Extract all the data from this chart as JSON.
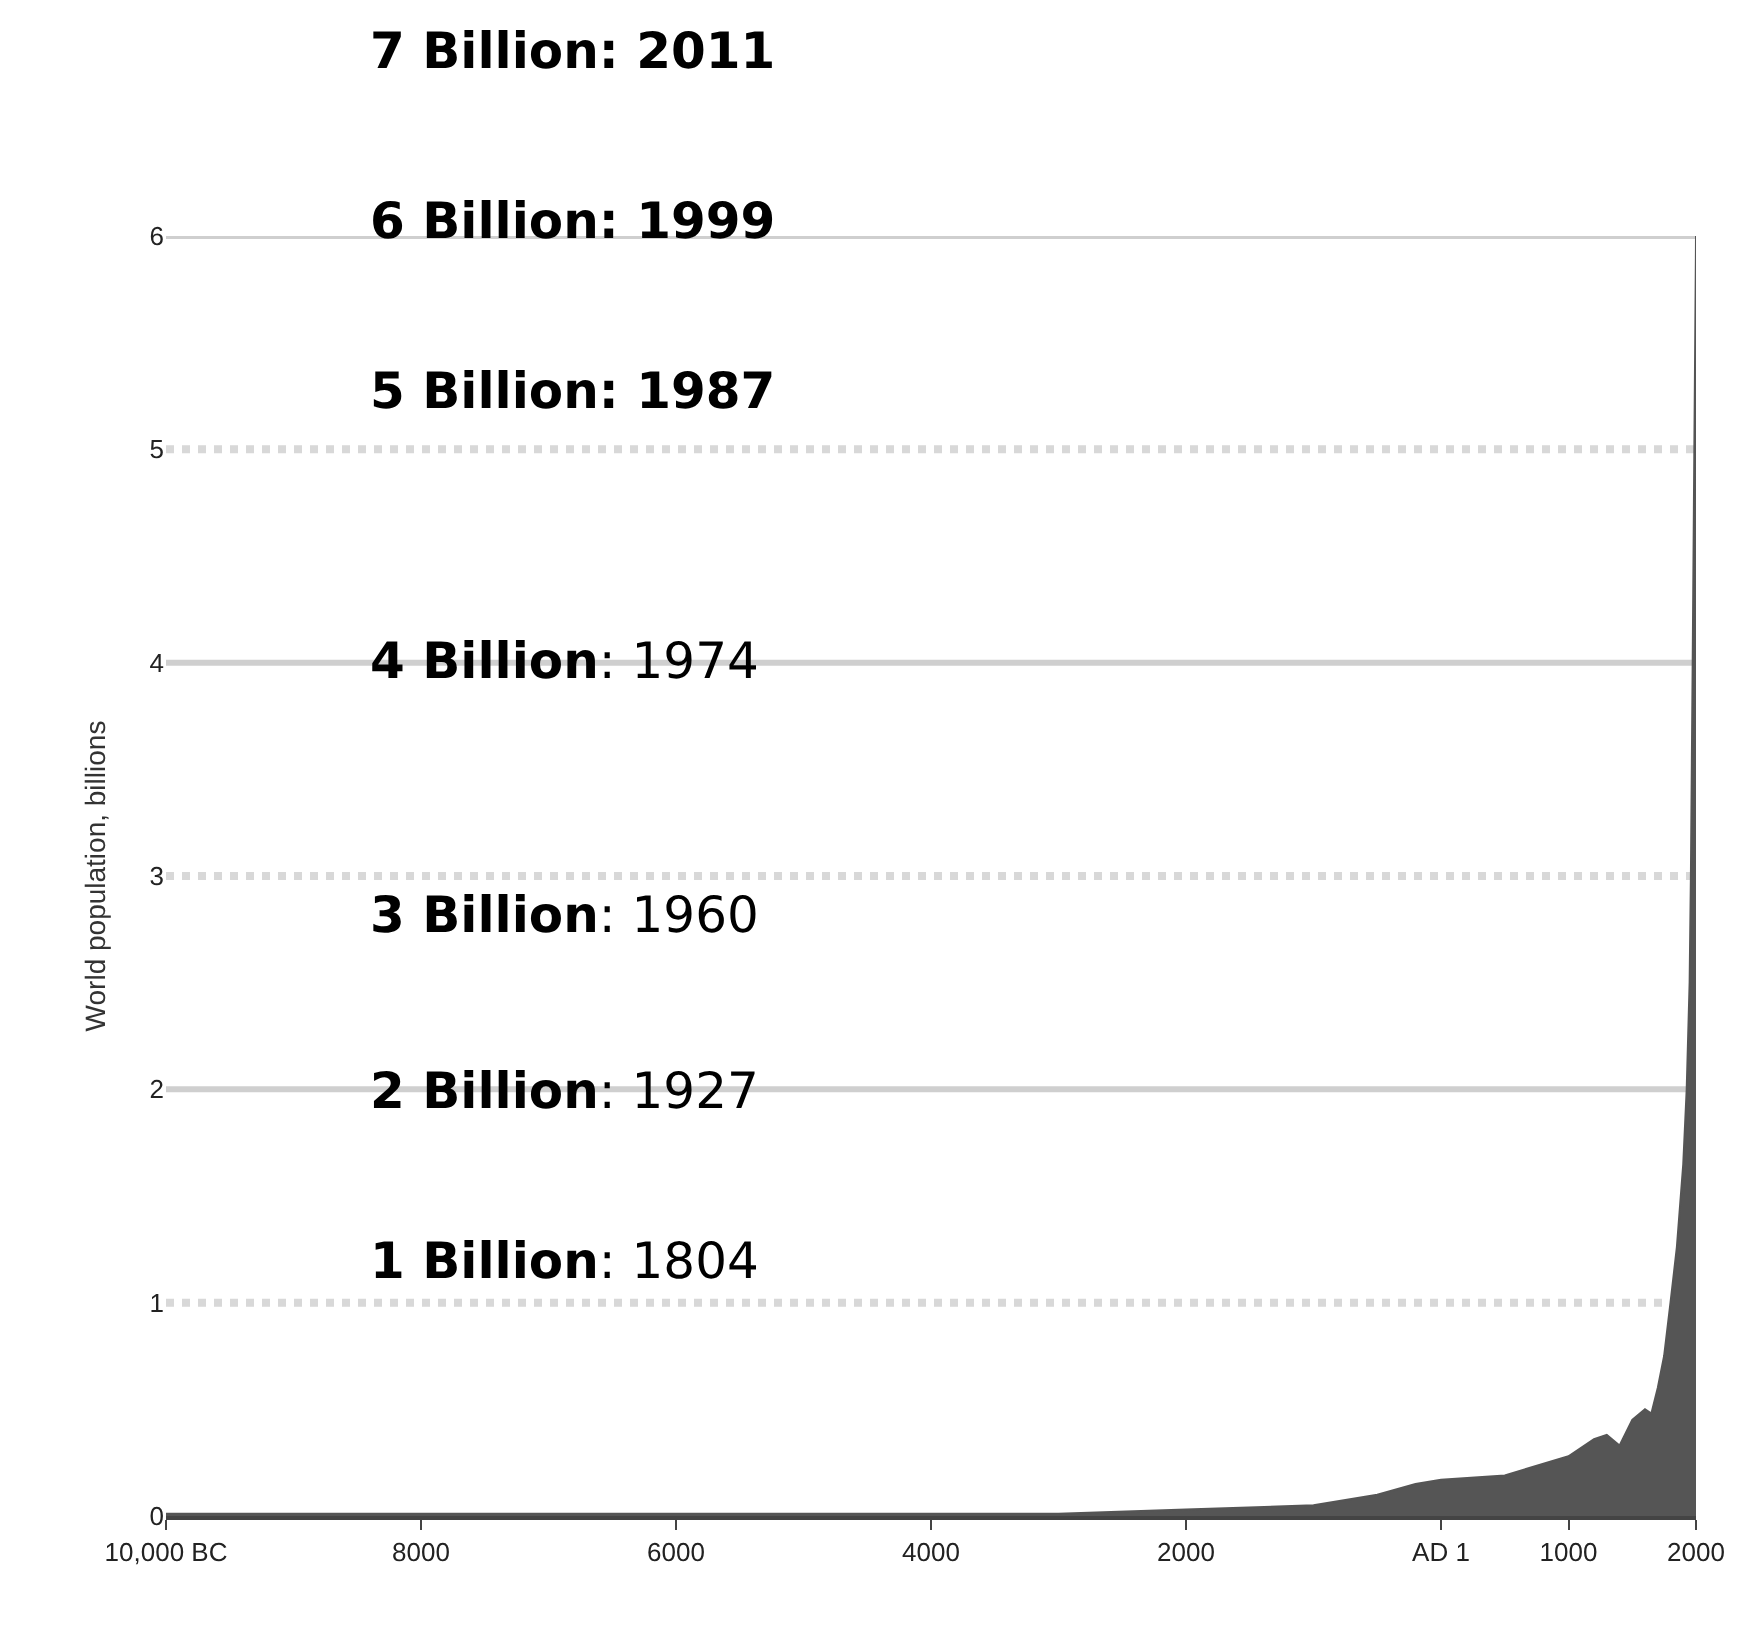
{
  "chart_data": {
    "type": "area",
    "ylabel": "World population, billions",
    "x": [
      -10000,
      -8000,
      -6000,
      -4000,
      -3000,
      -2000,
      -1000,
      -500,
      -200,
      0,
      500,
      1000,
      1200,
      1300,
      1400,
      1500,
      1600,
      1650,
      1700,
      1750,
      1800,
      1850,
      1900,
      1927,
      1950,
      1960,
      1974,
      1987,
      1999,
      2000
    ],
    "series": [
      {
        "color": "#555555",
        "values": [
          0.01,
          0.01,
          0.01,
          0.01,
          0.01,
          0.03,
          0.05,
          0.1,
          0.15,
          0.17,
          0.19,
          0.28,
          0.36,
          0.38,
          0.33,
          0.45,
          0.5,
          0.48,
          0.6,
          0.75,
          1.0,
          1.26,
          1.65,
          2.0,
          2.5,
          3.0,
          4.0,
          5.0,
          5.9,
          6.0
        ]
      }
    ],
    "xlim": [
      -10000,
      2000
    ],
    "xticks": [
      {
        "value": -10000,
        "label": "10,000 BC"
      },
      {
        "value": -8000,
        "label": "8000"
      },
      {
        "value": -6000,
        "label": "6000"
      },
      {
        "value": -4000,
        "label": "4000"
      },
      {
        "value": -2000,
        "label": "2000"
      },
      {
        "value": 0,
        "label": "AD 1"
      },
      {
        "value": 1000,
        "label": "1000"
      },
      {
        "value": 2000,
        "label": "2000"
      }
    ],
    "ylim": [
      0,
      6
    ],
    "yticks": [
      0,
      1,
      2,
      3,
      4,
      5,
      6
    ],
    "grid": "y",
    "annotations": [
      "7 Billion: 2011",
      "6 Billion: 1999",
      "5 Billion: 1987",
      "4 Billion: 1974",
      "3 Billion: 1960",
      "2 Billion: 1927",
      "1 Billion: 1804"
    ]
  }
}
